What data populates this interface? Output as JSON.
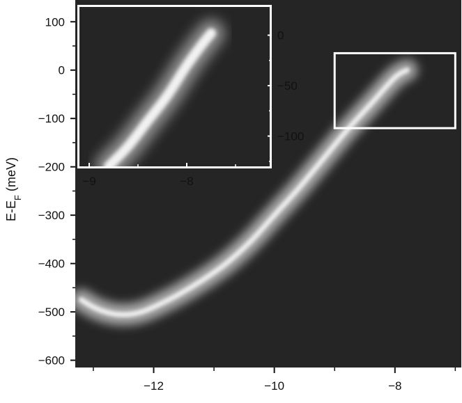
{
  "chart_data": [
    {
      "type": "heatmap",
      "ylabel": "E-E",
      "ylabel_sub": "F",
      "ylabel_unit": " (meV)",
      "xlabel": "",
      "xlim": [
        -13.3,
        -6.9
      ],
      "ylim": [
        -615,
        145
      ],
      "xticks": [
        -12,
        -10,
        -8
      ],
      "xtick_labels": [
        "−12",
        "−10",
        "−8"
      ],
      "yticks": [
        100,
        0,
        -100,
        -200,
        -300,
        -400,
        -500,
        -600
      ],
      "ytick_labels": [
        "100",
        "0",
        "−100",
        "−200",
        "−300",
        "−400",
        "−500",
        "−600"
      ],
      "colormap": "grayscale",
      "background_color": "#252525",
      "band": {
        "x": [
          -13.2,
          -13.0,
          -12.8,
          -12.6,
          -12.4,
          -12.2,
          -12.0,
          -11.6,
          -11.2,
          -10.8,
          -10.4,
          -10.0,
          -9.6,
          -9.2,
          -8.8,
          -8.4,
          -8.0,
          -7.8
        ],
        "y": [
          -475,
          -490,
          -500,
          -505,
          -505,
          -500,
          -490,
          -465,
          -435,
          -400,
          -355,
          -300,
          -245,
          -185,
          -125,
          -70,
          -15,
          0
        ]
      },
      "highlight_box": {
        "x": [
          -9.0,
          -7.0
        ],
        "y": [
          -120,
          35
        ],
        "color": "#ffffff"
      }
    },
    {
      "type": "heatmap",
      "title": "",
      "xlim": [
        -9.1,
        -7.15
      ],
      "ylim": [
        -130,
        28
      ],
      "xticks": [
        -9,
        -8
      ],
      "xtick_labels": [
        "−9",
        "−8"
      ],
      "yticks": [
        0,
        -50,
        -100
      ],
      "ytick_labels": [
        "0",
        "−50",
        "−100"
      ],
      "colormap": "grayscale",
      "background_color": "#252525",
      "band": {
        "x": [
          -8.8,
          -8.6,
          -8.4,
          -8.2,
          -8.0,
          -7.85,
          -7.75
        ],
        "y": [
          -130,
          -110,
          -85,
          -60,
          -30,
          -10,
          2
        ]
      }
    }
  ]
}
